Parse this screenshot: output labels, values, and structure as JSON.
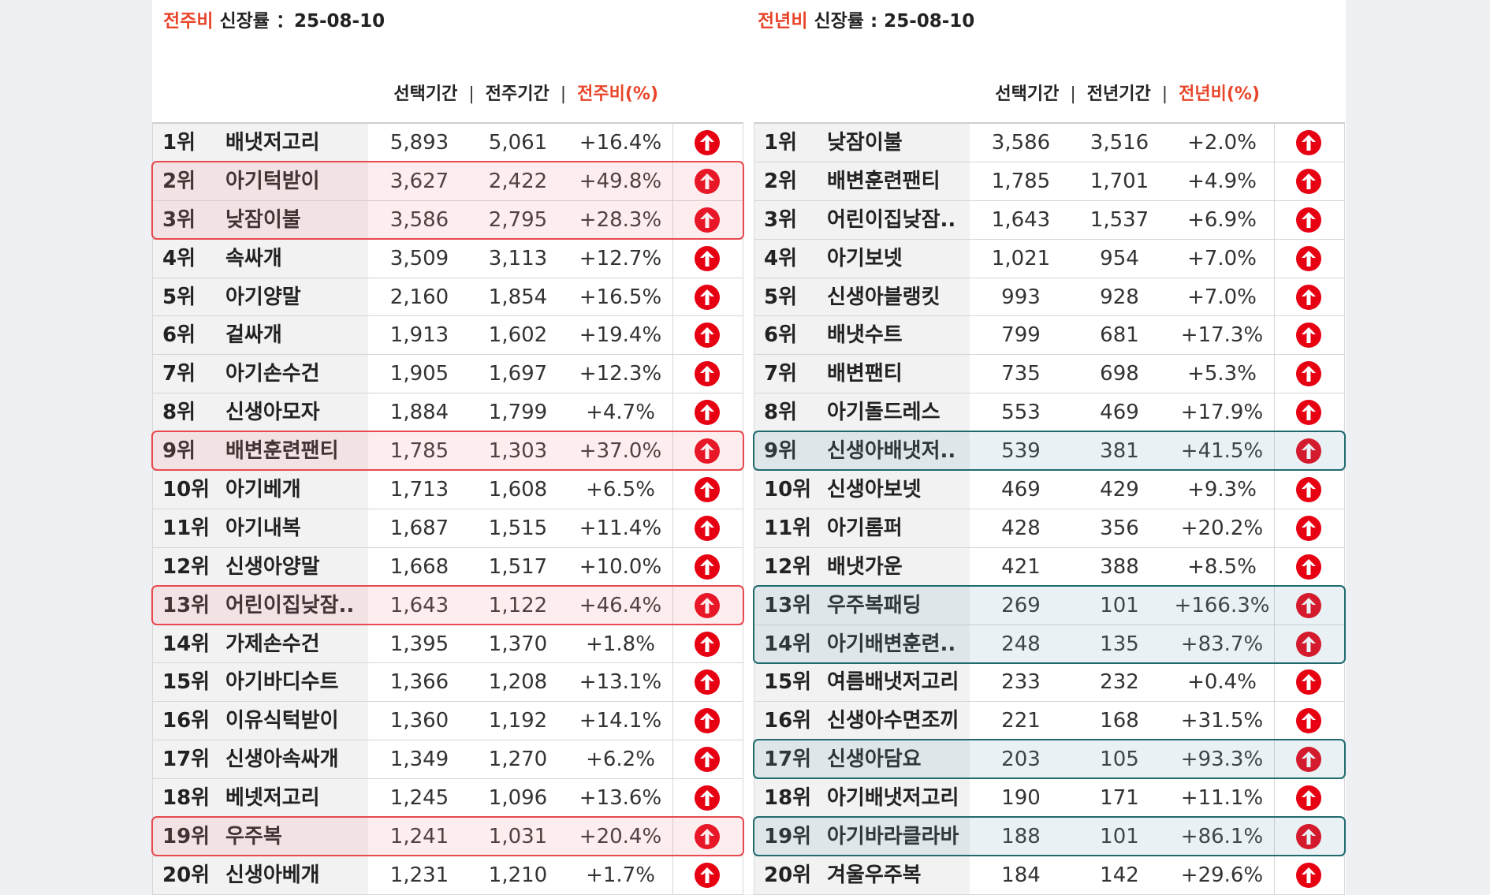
{
  "colors": {
    "accent": "#e8452a",
    "up_icon": "#e60012",
    "highlight_weekly": "#e84a4f",
    "highlight_yearly": "#1f6a6f"
  },
  "weekly": {
    "title_accent": "전주비",
    "title_rest": " 신장률 ：25-08-10",
    "col_selected": "선택기간",
    "col_compare": "전주기간",
    "col_ratio": "전주비(%)",
    "sep": "|",
    "rows": [
      {
        "rank": "1위",
        "name": "배냇저고리",
        "sel": "5,893",
        "cmp": "5,061",
        "pct": "+16.4%"
      },
      {
        "rank": "2위",
        "name": "아기턱받이",
        "sel": "3,627",
        "cmp": "2,422",
        "pct": "+49.8%"
      },
      {
        "rank": "3위",
        "name": "낮잠이불",
        "sel": "3,586",
        "cmp": "2,795",
        "pct": "+28.3%"
      },
      {
        "rank": "4위",
        "name": "속싸개",
        "sel": "3,509",
        "cmp": "3,113",
        "pct": "+12.7%"
      },
      {
        "rank": "5위",
        "name": "아기양말",
        "sel": "2,160",
        "cmp": "1,854",
        "pct": "+16.5%"
      },
      {
        "rank": "6위",
        "name": "겉싸개",
        "sel": "1,913",
        "cmp": "1,602",
        "pct": "+19.4%"
      },
      {
        "rank": "7위",
        "name": "아기손수건",
        "sel": "1,905",
        "cmp": "1,697",
        "pct": "+12.3%"
      },
      {
        "rank": "8위",
        "name": "신생아모자",
        "sel": "1,884",
        "cmp": "1,799",
        "pct": "+4.7%"
      },
      {
        "rank": "9위",
        "name": "배변훈련팬티",
        "sel": "1,785",
        "cmp": "1,303",
        "pct": "+37.0%"
      },
      {
        "rank": "10위",
        "name": "아기베개",
        "sel": "1,713",
        "cmp": "1,608",
        "pct": "+6.5%"
      },
      {
        "rank": "11위",
        "name": "아기내복",
        "sel": "1,687",
        "cmp": "1,515",
        "pct": "+11.4%"
      },
      {
        "rank": "12위",
        "name": "신생아양말",
        "sel": "1,668",
        "cmp": "1,517",
        "pct": "+10.0%"
      },
      {
        "rank": "13위",
        "name": "어린이집낮잠..",
        "sel": "1,643",
        "cmp": "1,122",
        "pct": "+46.4%"
      },
      {
        "rank": "14위",
        "name": "가제손수건",
        "sel": "1,395",
        "cmp": "1,370",
        "pct": "+1.8%"
      },
      {
        "rank": "15위",
        "name": "아기바디수트",
        "sel": "1,366",
        "cmp": "1,208",
        "pct": "+13.1%"
      },
      {
        "rank": "16위",
        "name": "이유식턱받이",
        "sel": "1,360",
        "cmp": "1,192",
        "pct": "+14.1%"
      },
      {
        "rank": "17위",
        "name": "신생아속싸개",
        "sel": "1,349",
        "cmp": "1,270",
        "pct": "+6.2%"
      },
      {
        "rank": "18위",
        "name": "베넷저고리",
        "sel": "1,245",
        "cmp": "1,096",
        "pct": "+13.6%"
      },
      {
        "rank": "19위",
        "name": "우주복",
        "sel": "1,241",
        "cmp": "1,031",
        "pct": "+20.4%"
      },
      {
        "rank": "20위",
        "name": "신생아베개",
        "sel": "1,231",
        "cmp": "1,210",
        "pct": "+1.7%"
      }
    ]
  },
  "yearly": {
    "title_accent": "전년비",
    "title_rest": " 신장률 : 25-08-10",
    "col_selected": "선택기간",
    "col_compare": "전년기간",
    "col_ratio": "전년비(%)",
    "sep": "|",
    "rows": [
      {
        "rank": "1위",
        "name": "낮잠이불",
        "sel": "3,586",
        "cmp": "3,516",
        "pct": "+2.0%"
      },
      {
        "rank": "2위",
        "name": "배변훈련팬티",
        "sel": "1,785",
        "cmp": "1,701",
        "pct": "+4.9%"
      },
      {
        "rank": "3위",
        "name": "어린이집낮잠..",
        "sel": "1,643",
        "cmp": "1,537",
        "pct": "+6.9%"
      },
      {
        "rank": "4위",
        "name": "아기보넷",
        "sel": "1,021",
        "cmp": "954",
        "pct": "+7.0%"
      },
      {
        "rank": "5위",
        "name": "신생아블랭킷",
        "sel": "993",
        "cmp": "928",
        "pct": "+7.0%"
      },
      {
        "rank": "6위",
        "name": "배냇수트",
        "sel": "799",
        "cmp": "681",
        "pct": "+17.3%"
      },
      {
        "rank": "7위",
        "name": "배변팬티",
        "sel": "735",
        "cmp": "698",
        "pct": "+5.3%"
      },
      {
        "rank": "8위",
        "name": "아기돌드레스",
        "sel": "553",
        "cmp": "469",
        "pct": "+17.9%"
      },
      {
        "rank": "9위",
        "name": "신생아배냇저..",
        "sel": "539",
        "cmp": "381",
        "pct": "+41.5%"
      },
      {
        "rank": "10위",
        "name": "신생아보넷",
        "sel": "469",
        "cmp": "429",
        "pct": "+9.3%"
      },
      {
        "rank": "11위",
        "name": "아기롬퍼",
        "sel": "428",
        "cmp": "356",
        "pct": "+20.2%"
      },
      {
        "rank": "12위",
        "name": "배냇가운",
        "sel": "421",
        "cmp": "388",
        "pct": "+8.5%"
      },
      {
        "rank": "13위",
        "name": "우주복패딩",
        "sel": "269",
        "cmp": "101",
        "pct": "+166.3%"
      },
      {
        "rank": "14위",
        "name": "아기배변훈련..",
        "sel": "248",
        "cmp": "135",
        "pct": "+83.7%"
      },
      {
        "rank": "15위",
        "name": "여름배냇저고리",
        "sel": "233",
        "cmp": "232",
        "pct": "+0.4%"
      },
      {
        "rank": "16위",
        "name": "신생아수면조끼",
        "sel": "221",
        "cmp": "168",
        "pct": "+31.5%"
      },
      {
        "rank": "17위",
        "name": "신생아담요",
        "sel": "203",
        "cmp": "105",
        "pct": "+93.3%"
      },
      {
        "rank": "18위",
        "name": "아기배냇저고리",
        "sel": "190",
        "cmp": "171",
        "pct": "+11.1%"
      },
      {
        "rank": "19위",
        "name": "아기바라클라바",
        "sel": "188",
        "cmp": "101",
        "pct": "+86.1%"
      },
      {
        "rank": "20위",
        "name": "겨울우주복",
        "sel": "184",
        "cmp": "142",
        "pct": "+29.6%"
      }
    ]
  }
}
